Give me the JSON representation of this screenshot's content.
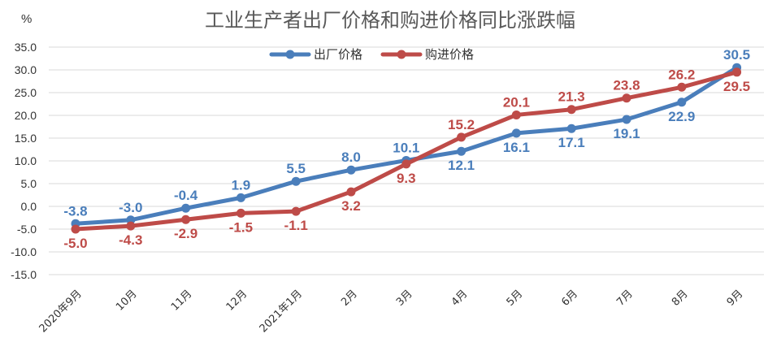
{
  "chart_data": {
    "type": "line",
    "title": "工业生产者出厂价格和购进价格同比涨跌幅",
    "unit_label": "%",
    "categories": [
      "2020年9月",
      "10月",
      "11月",
      "12月",
      "2021年1月",
      "2月",
      "3月",
      "4月",
      "5月",
      "6月",
      "7月",
      "8月",
      "9月"
    ],
    "ylim": [
      -15,
      35
    ],
    "yticks": [
      35,
      30,
      25,
      20,
      15,
      10,
      5,
      0,
      -5,
      -10,
      -15
    ],
    "ytick_labels": [
      "35.0",
      "30.0",
      "25.0",
      "20.0",
      "15.0",
      "10.0",
      "5.0",
      "0.0",
      "-5.0",
      "-10.0",
      "-15.0"
    ],
    "grid": true,
    "legend_position": "top-center",
    "series": [
      {
        "name": "出厂价格",
        "color": "#4a7ebb",
        "values": [
          -3.8,
          -3.0,
          -0.4,
          1.9,
          5.5,
          8.0,
          10.1,
          12.1,
          16.1,
          17.1,
          19.1,
          22.9,
          30.5
        ],
        "labels": [
          "-3.8",
          "-3.0",
          "-0.4",
          "1.9",
          "5.5",
          "8.0",
          "10.1",
          "12.1",
          "16.1",
          "17.1",
          "19.1",
          "22.9",
          "30.5"
        ],
        "label_side": [
          "above",
          "above",
          "above",
          "above",
          "above",
          "above",
          "above",
          "below",
          "below",
          "below",
          "below",
          "below",
          "above"
        ]
      },
      {
        "name": "购进价格",
        "color": "#be4b48",
        "values": [
          -5.0,
          -4.3,
          -2.9,
          -1.5,
          -1.1,
          3.2,
          9.3,
          15.2,
          20.1,
          21.3,
          23.8,
          26.2,
          29.5
        ],
        "labels": [
          "-5.0",
          "-4.3",
          "-2.9",
          "-1.5",
          "-1.1",
          "3.2",
          "9.3",
          "15.2",
          "20.1",
          "21.3",
          "23.8",
          "26.2",
          "29.5"
        ],
        "label_side": [
          "below",
          "below",
          "below",
          "below",
          "below",
          "below",
          "below",
          "above",
          "above",
          "above",
          "above",
          "above",
          "below"
        ]
      }
    ]
  }
}
